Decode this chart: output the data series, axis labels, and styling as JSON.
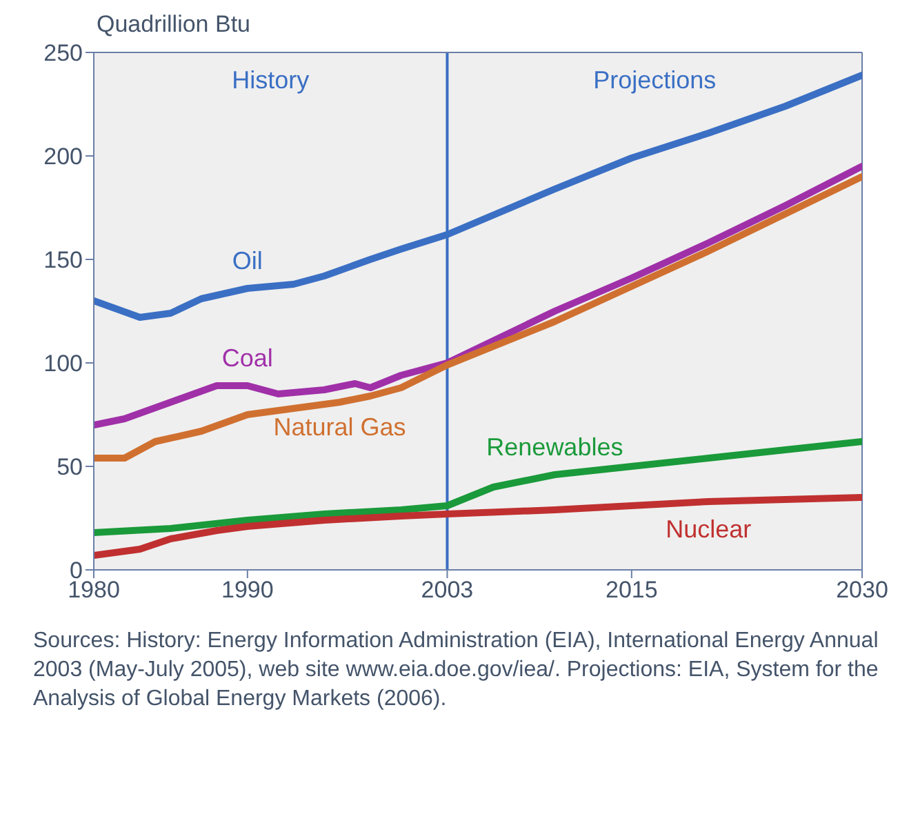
{
  "chart_data": {
    "type": "line",
    "ylabel": "Quadrillion Btu",
    "xlim": [
      1980,
      2030
    ],
    "xticks": [
      1980,
      1990,
      2003,
      2015,
      2030
    ],
    "ylim": [
      0,
      250
    ],
    "yticks": [
      0,
      50,
      100,
      150,
      200,
      250
    ],
    "grid": false,
    "legend": false,
    "marker": "none",
    "line_style": "solid",
    "series": [
      {
        "name": "Oil",
        "color": "#3a6fc4",
        "x": [
          1980,
          1983,
          1985,
          1987,
          1990,
          1993,
          1995,
          1998,
          2000,
          2003,
          2010,
          2015,
          2020,
          2025,
          2030
        ],
        "values": [
          130,
          122,
          124,
          131,
          136,
          138,
          142,
          150,
          155,
          162,
          184,
          199,
          211,
          224,
          239
        ]
      },
      {
        "name": "Coal",
        "color": "#a030a8",
        "x": [
          1980,
          1982,
          1985,
          1988,
          1990,
          1992,
          1995,
          1997,
          1998,
          2000,
          2003,
          2010,
          2015,
          2020,
          2025,
          2030
        ],
        "values": [
          70,
          73,
          81,
          89,
          89,
          85,
          87,
          90,
          88,
          94,
          100,
          125,
          141,
          158,
          176,
          195
        ]
      },
      {
        "name": "Natural Gas",
        "color": "#d07030",
        "x": [
          1980,
          1982,
          1984,
          1987,
          1990,
          1993,
          1996,
          1998,
          2000,
          2003,
          2010,
          2015,
          2020,
          2025,
          2030
        ],
        "values": [
          54,
          54,
          62,
          67,
          75,
          78,
          81,
          84,
          88,
          99,
          120,
          137,
          154,
          172,
          190
        ]
      },
      {
        "name": "Renewables",
        "color": "#1a9a3a",
        "x": [
          1980,
          1985,
          1990,
          1995,
          2000,
          2003,
          2006,
          2010,
          2015,
          2020,
          2025,
          2030
        ],
        "values": [
          18,
          20,
          24,
          27,
          29,
          31,
          40,
          46,
          50,
          54,
          58,
          62
        ]
      },
      {
        "name": "Nuclear",
        "color": "#c03030",
        "x": [
          1980,
          1983,
          1985,
          1988,
          1990,
          1995,
          2000,
          2003,
          2010,
          2015,
          2020,
          2025,
          2030
        ],
        "values": [
          7,
          10,
          15,
          19,
          21,
          24,
          26,
          27,
          29,
          31,
          33,
          34,
          35
        ]
      }
    ],
    "ref_lines": [
      {
        "axis": "x",
        "value": 2003,
        "color": "#3a6fc4"
      }
    ],
    "annotations": [
      "History",
      "Projections",
      "Sources: History: Energy Information Administration (EIA), International Energy Annual 2003 (May-July 2005), web site www.eia.doe.gov/iea/. Projections: EIA, System for the Analysis of Global Energy Markets (2006)."
    ]
  }
}
